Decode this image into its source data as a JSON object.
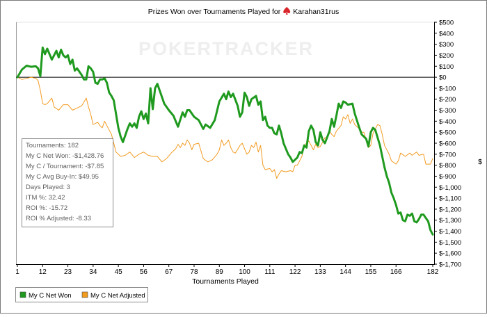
{
  "chart_data": {
    "type": "line",
    "title": "Prizes Won over Tournaments Played for",
    "player": "Karahan31rus",
    "watermark": "POKERTRACKER",
    "xlabel": "Tournaments Played",
    "ylabel": "$",
    "x_ticks": [
      1,
      12,
      23,
      34,
      45,
      56,
      67,
      78,
      89,
      100,
      111,
      122,
      133,
      144,
      155,
      166,
      182
    ],
    "xlim": [
      1,
      182
    ],
    "ylim": [
      -1700,
      500
    ],
    "y_ticks": [
      {
        "v": 500,
        "label": "$500"
      },
      {
        "v": 400,
        "label": "$400"
      },
      {
        "v": 300,
        "label": "$300"
      },
      {
        "v": 200,
        "label": "$200"
      },
      {
        "v": 100,
        "label": "$100"
      },
      {
        "v": 0,
        "label": "$0"
      },
      {
        "v": -100,
        "label": "$-100"
      },
      {
        "v": -200,
        "label": "$-200"
      },
      {
        "v": -300,
        "label": "$-300"
      },
      {
        "v": -400,
        "label": "$-400"
      },
      {
        "v": -500,
        "label": "$-500"
      },
      {
        "v": -600,
        "label": "$-600"
      },
      {
        "v": -700,
        "label": "$-700"
      },
      {
        "v": -800,
        "label": "$-800"
      },
      {
        "v": -900,
        "label": "$-900"
      },
      {
        "v": -1000,
        "label": "$-1,000"
      },
      {
        "v": -1100,
        "label": "$-1,100"
      },
      {
        "v": -1200,
        "label": "$-1,200"
      },
      {
        "v": -1300,
        "label": "$-1,300"
      },
      {
        "v": -1400,
        "label": "$-1,400"
      },
      {
        "v": -1500,
        "label": "$-1,500"
      },
      {
        "v": -1600,
        "label": "$-1,600"
      },
      {
        "v": -1700,
        "label": "$-1,700"
      }
    ],
    "grid": false,
    "legend_position": "bottom-left",
    "series": [
      {
        "name": "My C Net Won",
        "color": "#1f9a1f",
        "points": [
          [
            1,
            0
          ],
          [
            3,
            70
          ],
          [
            5,
            105
          ],
          [
            7,
            95
          ],
          [
            9,
            100
          ],
          [
            10,
            80
          ],
          [
            11,
            10
          ],
          [
            12,
            270
          ],
          [
            13,
            210
          ],
          [
            14,
            260
          ],
          [
            16,
            160
          ],
          [
            18,
            240
          ],
          [
            19,
            180
          ],
          [
            20,
            250
          ],
          [
            21,
            200
          ],
          [
            22,
            180
          ],
          [
            23,
            200
          ],
          [
            24,
            120
          ],
          [
            25,
            160
          ],
          [
            26,
            60
          ],
          [
            27,
            80
          ],
          [
            29,
            20
          ],
          [
            30,
            -20
          ],
          [
            31,
            -20
          ],
          [
            32,
            100
          ],
          [
            33,
            80
          ],
          [
            34,
            50
          ],
          [
            35,
            -50
          ],
          [
            36,
            -60
          ],
          [
            37,
            -20
          ],
          [
            38,
            -20
          ],
          [
            39,
            -10
          ],
          [
            40,
            -50
          ],
          [
            41,
            -140
          ],
          [
            42,
            -170
          ],
          [
            43,
            -210
          ],
          [
            45,
            -460
          ],
          [
            46,
            -540
          ],
          [
            47,
            -590
          ],
          [
            49,
            -470
          ],
          [
            50,
            -420
          ],
          [
            51,
            -450
          ],
          [
            52,
            -420
          ],
          [
            53,
            -460
          ],
          [
            54,
            -360
          ],
          [
            55,
            -310
          ],
          [
            56,
            -380
          ],
          [
            57,
            -330
          ],
          [
            58,
            -420
          ],
          [
            59,
            -100
          ],
          [
            60,
            -290
          ],
          [
            61,
            -100
          ],
          [
            62,
            -60
          ],
          [
            63,
            -120
          ],
          [
            65,
            -240
          ],
          [
            67,
            -300
          ],
          [
            69,
            -350
          ],
          [
            71,
            -450
          ],
          [
            73,
            -320
          ],
          [
            74,
            -360
          ],
          [
            75,
            -300
          ],
          [
            76,
            -300
          ],
          [
            78,
            -360
          ],
          [
            80,
            -390
          ],
          [
            82,
            -470
          ],
          [
            83,
            -430
          ],
          [
            85,
            -460
          ],
          [
            87,
            -390
          ],
          [
            89,
            -220
          ],
          [
            91,
            -150
          ],
          [
            92,
            -200
          ],
          [
            93,
            -130
          ],
          [
            94,
            -180
          ],
          [
            95,
            -150
          ],
          [
            97,
            -260
          ],
          [
            98,
            -360
          ],
          [
            99,
            -320
          ],
          [
            100,
            -140
          ],
          [
            101,
            -180
          ],
          [
            102,
            -260
          ],
          [
            103,
            -200
          ],
          [
            105,
            -170
          ],
          [
            106,
            -250
          ],
          [
            107,
            -220
          ],
          [
            108,
            -390
          ],
          [
            109,
            -360
          ],
          [
            110,
            -440
          ],
          [
            111,
            -460
          ],
          [
            112,
            -460
          ],
          [
            113,
            -510
          ],
          [
            114,
            -520
          ],
          [
            115,
            -440
          ],
          [
            116,
            -510
          ],
          [
            117,
            -600
          ],
          [
            118,
            -650
          ],
          [
            119,
            -700
          ],
          [
            120,
            -730
          ],
          [
            121,
            -770
          ],
          [
            123,
            -730
          ],
          [
            124,
            -680
          ],
          [
            125,
            -690
          ],
          [
            126,
            -620
          ],
          [
            127,
            -640
          ],
          [
            128,
            -490
          ],
          [
            129,
            -440
          ],
          [
            130,
            -480
          ],
          [
            131,
            -590
          ],
          [
            132,
            -620
          ],
          [
            133,
            -500
          ],
          [
            134,
            -570
          ],
          [
            135,
            -600
          ],
          [
            137,
            -490
          ],
          [
            138,
            -380
          ],
          [
            139,
            -450
          ],
          [
            140,
            -350
          ],
          [
            141,
            -240
          ],
          [
            142,
            -280
          ],
          [
            143,
            -220
          ],
          [
            144,
            -230
          ],
          [
            145,
            -250
          ],
          [
            147,
            -240
          ],
          [
            148,
            -330
          ],
          [
            150,
            -460
          ],
          [
            151,
            -520
          ],
          [
            153,
            -560
          ],
          [
            154,
            -630
          ],
          [
            155,
            -500
          ],
          [
            156,
            -460
          ],
          [
            157,
            -480
          ],
          [
            159,
            -620
          ],
          [
            160,
            -720
          ],
          [
            161,
            -820
          ],
          [
            162,
            -900
          ],
          [
            163,
            -960
          ],
          [
            164,
            -1050
          ],
          [
            165,
            -1100
          ],
          [
            166,
            -1160
          ],
          [
            167,
            -1240
          ],
          [
            168,
            -1230
          ],
          [
            169,
            -1300
          ],
          [
            170,
            -1310
          ],
          [
            171,
            -1250
          ],
          [
            172,
            -1260
          ],
          [
            173,
            -1240
          ],
          [
            174,
            -1310
          ],
          [
            175,
            -1320
          ],
          [
            176,
            -1290
          ],
          [
            177,
            -1250
          ],
          [
            178,
            -1250
          ],
          [
            179,
            -1280
          ],
          [
            180,
            -1310
          ],
          [
            181,
            -1390
          ],
          [
            182,
            -1430
          ]
        ]
      },
      {
        "name": "My C Net Adjusted",
        "color": "#f29b21",
        "points": [
          [
            1,
            0
          ],
          [
            3,
            -20
          ],
          [
            5,
            -10
          ],
          [
            7,
            0
          ],
          [
            8,
            -5
          ],
          [
            9,
            -10
          ],
          [
            10,
            -30
          ],
          [
            11,
            -120
          ],
          [
            12,
            -240
          ],
          [
            13,
            -250
          ],
          [
            14,
            -240
          ],
          [
            16,
            -190
          ],
          [
            17,
            -270
          ],
          [
            19,
            -300
          ],
          [
            21,
            -250
          ],
          [
            23,
            -250
          ],
          [
            25,
            -300
          ],
          [
            27,
            -280
          ],
          [
            29,
            -260
          ],
          [
            31,
            -190
          ],
          [
            32,
            -270
          ],
          [
            33,
            -340
          ],
          [
            34,
            -430
          ],
          [
            36,
            -410
          ],
          [
            37,
            -440
          ],
          [
            38,
            -460
          ],
          [
            39,
            -400
          ],
          [
            40,
            -440
          ],
          [
            42,
            -520
          ],
          [
            43,
            -600
          ],
          [
            44,
            -680
          ],
          [
            46,
            -720
          ],
          [
            48,
            -710
          ],
          [
            50,
            -680
          ],
          [
            52,
            -730
          ],
          [
            54,
            -700
          ],
          [
            56,
            -680
          ],
          [
            58,
            -710
          ],
          [
            60,
            -720
          ],
          [
            62,
            -720
          ],
          [
            64,
            -770
          ],
          [
            66,
            -740
          ],
          [
            68,
            -690
          ],
          [
            70,
            -650
          ],
          [
            71,
            -610
          ],
          [
            72,
            -640
          ],
          [
            73,
            -600
          ],
          [
            74,
            -620
          ],
          [
            75,
            -570
          ],
          [
            76,
            -600
          ],
          [
            77,
            -660
          ],
          [
            78,
            -610
          ],
          [
            80,
            -600
          ],
          [
            82,
            -740
          ],
          [
            84,
            -770
          ],
          [
            86,
            -750
          ],
          [
            88,
            -700
          ],
          [
            89,
            -660
          ],
          [
            90,
            -570
          ],
          [
            91,
            -620
          ],
          [
            92,
            -600
          ],
          [
            93,
            -570
          ],
          [
            94,
            -640
          ],
          [
            95,
            -680
          ],
          [
            96,
            -690
          ],
          [
            98,
            -620
          ],
          [
            99,
            -600
          ],
          [
            100,
            -650
          ],
          [
            101,
            -700
          ],
          [
            102,
            -680
          ],
          [
            103,
            -620
          ],
          [
            104,
            -640
          ],
          [
            105,
            -590
          ],
          [
            106,
            -680
          ],
          [
            107,
            -620
          ],
          [
            108,
            -800
          ],
          [
            109,
            -840
          ],
          [
            111,
            -830
          ],
          [
            112,
            -860
          ],
          [
            113,
            -840
          ],
          [
            114,
            -920
          ],
          [
            115,
            -880
          ],
          [
            116,
            -850
          ],
          [
            118,
            -860
          ],
          [
            120,
            -850
          ],
          [
            121,
            -860
          ],
          [
            122,
            -800
          ],
          [
            123,
            -800
          ],
          [
            124,
            -760
          ],
          [
            125,
            -720
          ],
          [
            126,
            -620
          ],
          [
            128,
            -580
          ],
          [
            129,
            -620
          ],
          [
            130,
            -660
          ],
          [
            131,
            -610
          ],
          [
            132,
            -640
          ],
          [
            133,
            -630
          ],
          [
            135,
            -550
          ],
          [
            136,
            -550
          ],
          [
            137,
            -490
          ],
          [
            138,
            -520
          ],
          [
            139,
            -540
          ],
          [
            140,
            -490
          ],
          [
            142,
            -440
          ],
          [
            143,
            -360
          ],
          [
            144,
            -380
          ],
          [
            145,
            -340
          ],
          [
            146,
            -420
          ],
          [
            147,
            -380
          ],
          [
            148,
            -430
          ],
          [
            150,
            -470
          ],
          [
            151,
            -500
          ],
          [
            152,
            -500
          ],
          [
            154,
            -640
          ],
          [
            155,
            -620
          ],
          [
            156,
            -510
          ],
          [
            157,
            -470
          ],
          [
            158,
            -430
          ],
          [
            159,
            -440
          ],
          [
            160,
            -520
          ],
          [
            161,
            -620
          ],
          [
            163,
            -700
          ],
          [
            164,
            -760
          ],
          [
            166,
            -790
          ],
          [
            167,
            -760
          ],
          [
            168,
            -690
          ],
          [
            170,
            -720
          ],
          [
            172,
            -690
          ],
          [
            173,
            -710
          ],
          [
            175,
            -680
          ],
          [
            176,
            -710
          ],
          [
            178,
            -700
          ],
          [
            179,
            -790
          ],
          [
            181,
            -790
          ],
          [
            182,
            -740
          ]
        ]
      }
    ]
  },
  "stats": [
    {
      "label": "Tournaments:",
      "value": "182"
    },
    {
      "label": "My C Net Won:",
      "value": "-$1,428.76"
    },
    {
      "label": "My C / Tournament:",
      "value": "-$7.85"
    },
    {
      "label": "My C Avg Buy-In:",
      "value": "$49.95"
    },
    {
      "label": "Days Played:",
      "value": "3"
    },
    {
      "label": "ITM %:",
      "value": "32.42"
    },
    {
      "label": "ROI %:",
      "value": "-15.72"
    },
    {
      "label": "ROI % Adjusted:",
      "value": "-8.33"
    }
  ]
}
